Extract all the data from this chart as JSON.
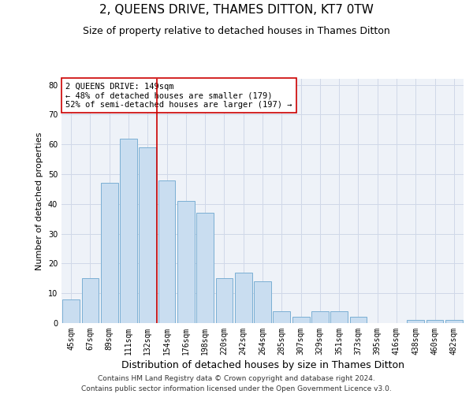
{
  "title": "2, QUEENS DRIVE, THAMES DITTON, KT7 0TW",
  "subtitle": "Size of property relative to detached houses in Thames Ditton",
  "xlabel": "Distribution of detached houses by size in Thames Ditton",
  "ylabel": "Number of detached properties",
  "categories": [
    "45sqm",
    "67sqm",
    "89sqm",
    "111sqm",
    "132sqm",
    "154sqm",
    "176sqm",
    "198sqm",
    "220sqm",
    "242sqm",
    "264sqm",
    "285sqm",
    "307sqm",
    "329sqm",
    "351sqm",
    "373sqm",
    "395sqm",
    "416sqm",
    "438sqm",
    "460sqm",
    "482sqm"
  ],
  "values": [
    8,
    15,
    47,
    62,
    59,
    48,
    41,
    37,
    15,
    17,
    14,
    4,
    2,
    4,
    4,
    2,
    0,
    0,
    1,
    1,
    1
  ],
  "bar_color": "#c9ddf0",
  "bar_edge_color": "#7bafd4",
  "vline_x": 4.5,
  "vline_color": "#cc0000",
  "annotation_text": "2 QUEENS DRIVE: 149sqm\n← 48% of detached houses are smaller (179)\n52% of semi-detached houses are larger (197) →",
  "annotation_box_color": "#ffffff",
  "annotation_box_edge": "#cc0000",
  "ylim": [
    0,
    82
  ],
  "yticks": [
    0,
    10,
    20,
    30,
    40,
    50,
    60,
    70,
    80
  ],
  "grid_color": "#d0d8e8",
  "background_color": "#eef2f8",
  "footer": "Contains HM Land Registry data © Crown copyright and database right 2024.\nContains public sector information licensed under the Open Government Licence v3.0.",
  "title_fontsize": 11,
  "subtitle_fontsize": 9,
  "xlabel_fontsize": 9,
  "ylabel_fontsize": 8,
  "tick_fontsize": 7,
  "annotation_fontsize": 7.5,
  "footer_fontsize": 6.5
}
